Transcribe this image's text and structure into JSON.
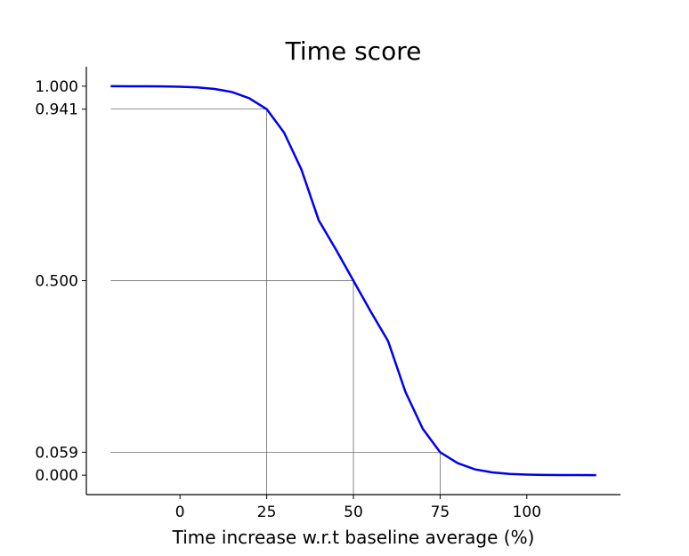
{
  "chart_data": {
    "type": "line",
    "title": "Time score",
    "xlabel": "Time increase w.r.t baseline average (%)",
    "ylabel": "",
    "xlim": [
      -27,
      127
    ],
    "ylim": [
      -0.05,
      1.05
    ],
    "x_ticks": [
      0,
      25,
      50,
      75,
      100
    ],
    "y_ticks": [
      0.0,
      0.059,
      0.5,
      0.941,
      1.0
    ],
    "x_tick_labels": [
      "0",
      "25",
      "50",
      "75",
      "100"
    ],
    "y_tick_labels": [
      "0.000",
      "0.059",
      "0.500",
      "0.941",
      "1.000"
    ],
    "grid": false,
    "series": [
      {
        "color": "#0000ee",
        "x": [
          -20,
          -15,
          -10,
          -5,
          0,
          5,
          10,
          15,
          20,
          25,
          30,
          35,
          40,
          45,
          50,
          55,
          60,
          65,
          70,
          75,
          80,
          85,
          90,
          95,
          100,
          105,
          110,
          115,
          120
        ],
        "y": [
          0.9999,
          0.9998,
          0.9996,
          0.9993,
          0.9984,
          0.9967,
          0.9929,
          0.985,
          0.9688,
          0.941,
          0.8808,
          0.7858,
          0.6553,
          0.5794,
          0.5,
          0.4206,
          0.3447,
          0.2142,
          0.1192,
          0.059,
          0.0312,
          0.015,
          0.0071,
          0.0033,
          0.0016,
          0.0007,
          0.0004,
          0.0002,
          0.0001
        ]
      }
    ],
    "reference_points": [
      {
        "x": 25,
        "y": 0.941
      },
      {
        "x": 50,
        "y": 0.5
      },
      {
        "x": 75,
        "y": 0.059
      }
    ]
  }
}
